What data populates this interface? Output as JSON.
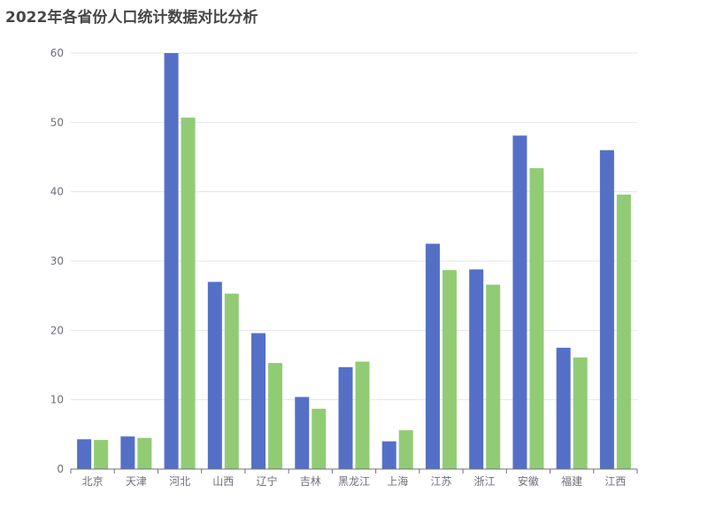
{
  "chart_data": {
    "type": "bar",
    "title": "2022年各省份人口统计数据对比分析",
    "categories": [
      "北京",
      "天津",
      "河北",
      "山西",
      "辽宁",
      "吉林",
      "黑龙江",
      "上海",
      "江苏",
      "浙江",
      "安徽",
      "福建",
      "江西"
    ],
    "series": [
      {
        "values": [
          4.3,
          4.7,
          60.0,
          27.0,
          19.6,
          10.4,
          14.7,
          4.0,
          32.5,
          28.8,
          48.1,
          17.5,
          46.0
        ],
        "color": "#5470c6"
      },
      {
        "values": [
          4.2,
          4.5,
          50.7,
          25.3,
          15.3,
          8.7,
          15.5,
          5.6,
          28.7,
          26.6,
          43.4,
          16.1,
          39.6
        ],
        "color": "#91cc75"
      }
    ],
    "xlabel": "",
    "ylabel": "",
    "ylim": [
      0,
      60
    ],
    "yticks": [
      "0",
      "10",
      "20",
      "30",
      "40",
      "50",
      "60"
    ],
    "grid": true,
    "legend": "none"
  }
}
